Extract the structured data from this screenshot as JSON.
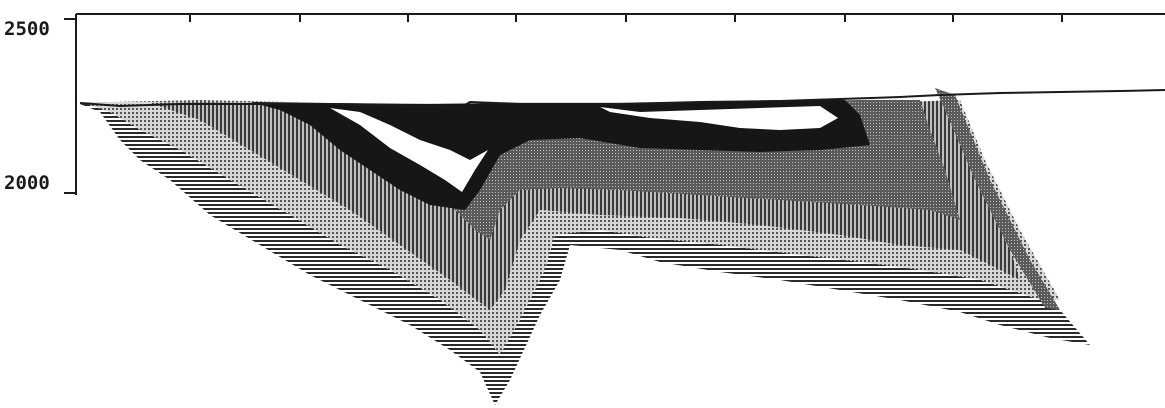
{
  "y_axis": {
    "tick_labels": [
      "2500",
      "2000"
    ]
  },
  "colors": {
    "ink": "#1a1a1a",
    "black_unit": "#161616",
    "dark_gray_unit": "#4e4e4e",
    "mid_gray_unit": "#7e7e7e",
    "light_gray_unit": "#b8b8b8",
    "paper": "#ffffff"
  }
}
